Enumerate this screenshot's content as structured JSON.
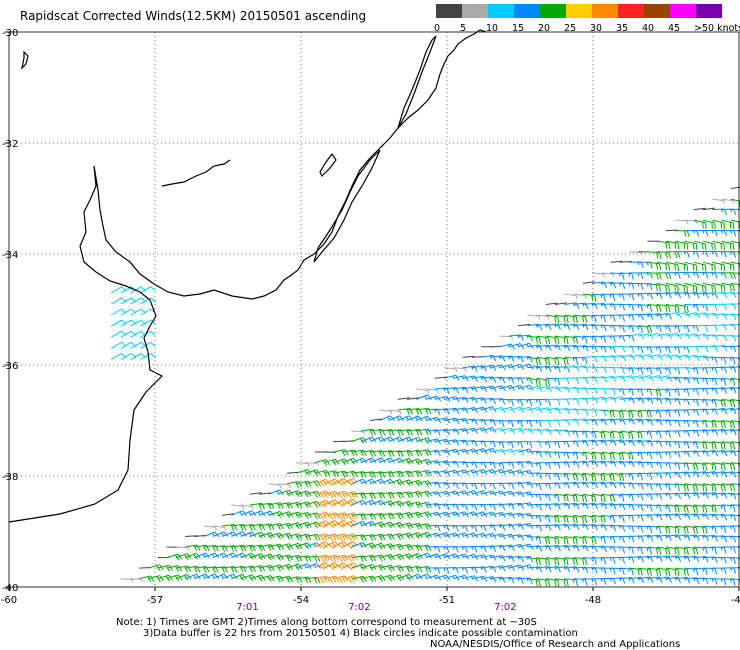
{
  "chart_data": {
    "type": "wind-barb-map",
    "title": "Rapidscat Corrected Winds(12.5KM) 20150501 ascending",
    "legend": {
      "labels": [
        "0",
        "5",
        "10",
        "15",
        "20",
        "25",
        "30",
        "35",
        "40",
        "45",
        ">50 knots"
      ],
      "colors": [
        "#444444",
        "#aaaaaa",
        "#00ccff",
        "#0088ff",
        "#00aa00",
        "#ffcc00",
        "#ff8800",
        "#ff2222",
        "#994400",
        "#ff00ff",
        "#7700aa"
      ],
      "placement": "top-right"
    },
    "xlim": [
      -60,
      -45
    ],
    "ylim": [
      -40,
      -30
    ],
    "x_ticks": [
      -60,
      -57,
      -54,
      -51,
      -48,
      -45
    ],
    "x_tick_labels": [
      "-60",
      "-57",
      "-54",
      "-51",
      "-48",
      "-45"
    ],
    "y_ticks": [
      -30,
      -32,
      -34,
      -36,
      -38,
      -40
    ],
    "y_tick_labels": [
      "-30",
      "-32",
      "-34",
      "-36",
      "-38",
      "-40"
    ],
    "grid": true,
    "time_labels": [
      {
        "text": "7:01",
        "lon": -55.1
      },
      {
        "text": "7:02",
        "lon": -52.8
      },
      {
        "text": "7:02",
        "lon": -49.8
      }
    ],
    "swath_edge": [
      [
        -57.9,
        -39.9
      ],
      [
        -45.3,
        -32.8
      ]
    ],
    "wind_regions": [
      {
        "name": "southwest swath",
        "speed_knots": 21,
        "direction_deg": 75
      },
      {
        "name": "red patch",
        "speed_knots": 32,
        "direction_deg": 70
      },
      {
        "name": "central swath",
        "speed_knots": 17,
        "direction_deg": 80
      },
      {
        "name": "blue band",
        "speed_knots": 13,
        "direction_deg": 85
      },
      {
        "name": "eastern swath",
        "speed_knots": 18,
        "direction_deg": 90
      },
      {
        "name": "northeast yellow",
        "speed_knots": 21,
        "direction_deg": 95
      },
      {
        "name": "swath edge",
        "speed_knots": 4,
        "direction_deg": 90
      },
      {
        "name": "estuary",
        "speed_knots": 12,
        "direction_deg": 60
      }
    ]
  },
  "footer": {
    "note_line1": "Note: 1) Times are GMT 2)Times along bottom correspond to measurement at ~30S",
    "note_line2": "3)Data buffer is 22 hrs from 20150501 4) Black circles indicate possible contamination",
    "credit": "NOAA/NESDIS/Office of Research and Applications"
  }
}
